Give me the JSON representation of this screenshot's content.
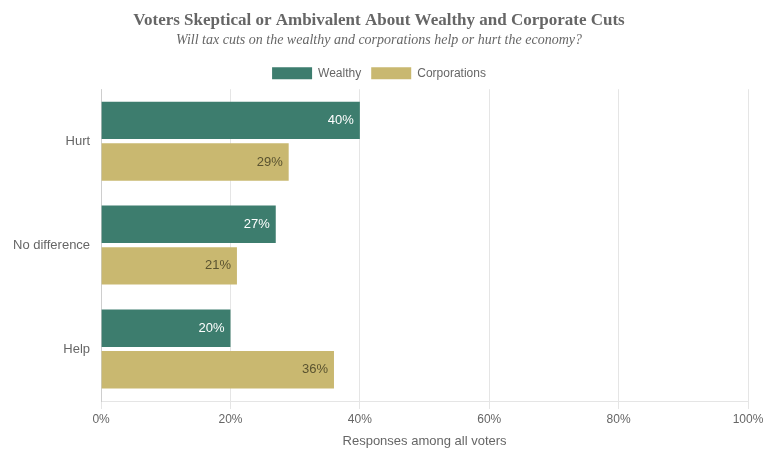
{
  "chart_data": {
    "type": "bar",
    "orientation": "horizontal",
    "title": "Voters Skeptical or Ambivalent About Wealthy and Corporate Cuts",
    "subtitle": "Will tax cuts on the wealthy and corporations help or hurt the economy?",
    "xlabel": "Responses among all voters",
    "categories": [
      "Help",
      "No difference",
      "Hurt"
    ],
    "series": [
      {
        "name": "Wealthy",
        "color": "#3d7d6e",
        "values": [
          20,
          27,
          40
        ],
        "value_labels": [
          "20%",
          "27%",
          "40%"
        ]
      },
      {
        "name": "Corporations",
        "color": "#c9b870",
        "values": [
          36,
          21,
          29
        ],
        "value_labels": [
          "36%",
          "21%",
          "29%"
        ]
      }
    ],
    "xlim": [
      0,
      100
    ],
    "xticks": [
      {
        "value": 0,
        "label": "0%"
      },
      {
        "value": 20,
        "label": "20%"
      },
      {
        "value": 40,
        "label": "40%"
      },
      {
        "value": 60,
        "label": "60%"
      },
      {
        "value": 80,
        "label": "80%"
      },
      {
        "value": 100,
        "label": "100%"
      }
    ],
    "grid": true,
    "legend": "top",
    "data_labels": true
  }
}
